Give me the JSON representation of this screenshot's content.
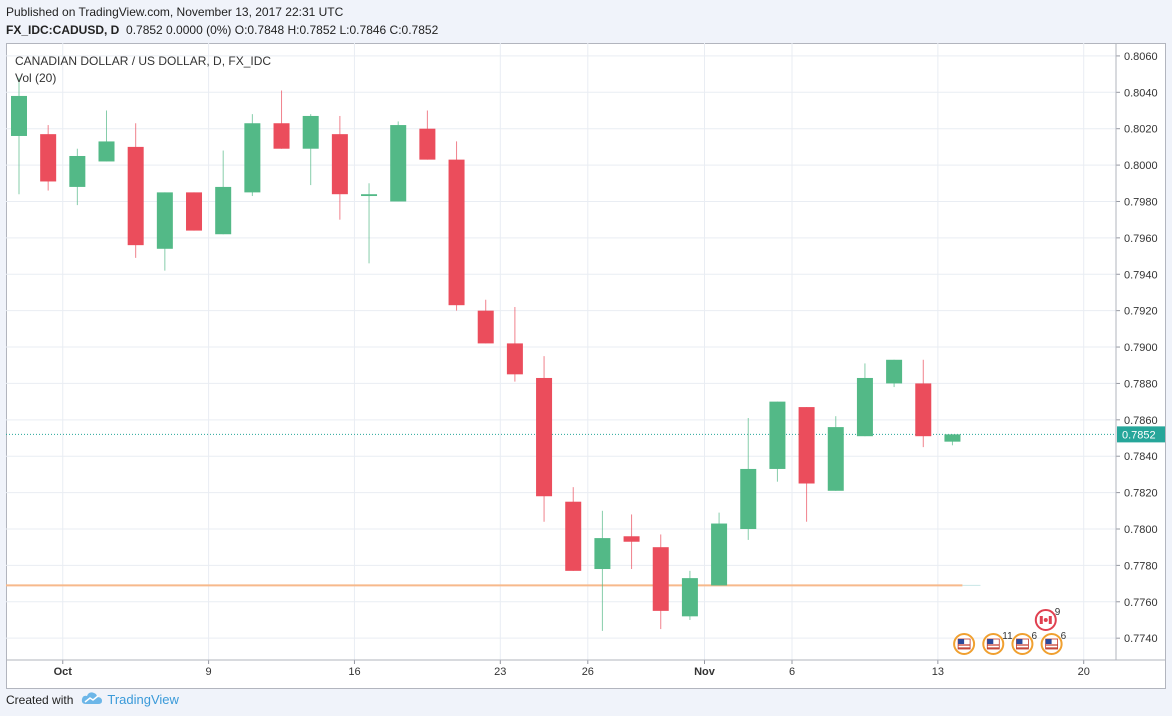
{
  "header": {
    "published": "Published on TradingView.com, November 13, 2017 22:31 UTC",
    "symbol": "FX_IDC:CADUSD, D",
    "ohlc": "0.7852 0.0000 (0%) O:0.7848 H:0.7852 L:0.7846 C:0.7852"
  },
  "legend": {
    "title": "CANADIAN DOLLAR / US DOLLAR, D, FX_IDC",
    "volume": "Vol (20)"
  },
  "footer": {
    "created_with": "Created with",
    "brand": "TradingView"
  },
  "colors": {
    "up": "#53b987",
    "down": "#eb4d5c",
    "price_line": "#26a69a",
    "ma_line": "#f7b98b",
    "grid": "#e9edf3"
  },
  "chart_data": {
    "type": "candlestick",
    "title": "CANADIAN DOLLAR / US DOLLAR, D, FX_IDC",
    "ylim": [
      0.7728,
      0.8066
    ],
    "y_ticks": [
      "0.8060",
      "0.8040",
      "0.8020",
      "0.8000",
      "0.7980",
      "0.7960",
      "0.7940",
      "0.7920",
      "0.7900",
      "0.7880",
      "0.7860",
      "0.7840",
      "0.7820",
      "0.7800",
      "0.7780",
      "0.7760",
      "0.7740"
    ],
    "x_ticks": [
      {
        "label": "Oct",
        "index": 1.5
      },
      {
        "label": "9",
        "index": 6.5
      },
      {
        "label": "16",
        "index": 11.5
      },
      {
        "label": "23",
        "index": 16.5
      },
      {
        "label": "26",
        "index": 19.5
      },
      {
        "label": "Nov",
        "index": 23.5
      },
      {
        "label": "6",
        "index": 26.5
      },
      {
        "label": "13",
        "index": 31.5
      },
      {
        "label": "20",
        "index": 36.5
      }
    ],
    "last_price": 0.7852,
    "ma_level": 0.7769,
    "candles": [
      {
        "o": 0.8016,
        "h": 0.8048,
        "l": 0.7984,
        "c": 0.8038
      },
      {
        "o": 0.8017,
        "h": 0.8022,
        "l": 0.7986,
        "c": 0.7991
      },
      {
        "o": 0.7988,
        "h": 0.8009,
        "l": 0.7978,
        "c": 0.8005
      },
      {
        "o": 0.8002,
        "h": 0.803,
        "l": 0.8002,
        "c": 0.8013
      },
      {
        "o": 0.801,
        "h": 0.8023,
        "l": 0.7949,
        "c": 0.7956
      },
      {
        "o": 0.7954,
        "h": 0.7985,
        "l": 0.7942,
        "c": 0.7985
      },
      {
        "o": 0.7985,
        "h": 0.7985,
        "l": 0.7964,
        "c": 0.7964
      },
      {
        "o": 0.7962,
        "h": 0.8008,
        "l": 0.7962,
        "c": 0.7988
      },
      {
        "o": 0.7985,
        "h": 0.8028,
        "l": 0.7983,
        "c": 0.8023
      },
      {
        "o": 0.8023,
        "h": 0.8041,
        "l": 0.8009,
        "c": 0.8009
      },
      {
        "o": 0.8009,
        "h": 0.8028,
        "l": 0.7989,
        "c": 0.8027
      },
      {
        "o": 0.8017,
        "h": 0.8027,
        "l": 0.797,
        "c": 0.7984
      },
      {
        "o": 0.7983,
        "h": 0.799,
        "l": 0.7946,
        "c": 0.7984
      },
      {
        "o": 0.798,
        "h": 0.8024,
        "l": 0.798,
        "c": 0.8022
      },
      {
        "o": 0.802,
        "h": 0.803,
        "l": 0.8003,
        "c": 0.8003
      },
      {
        "o": 0.8003,
        "h": 0.8013,
        "l": 0.792,
        "c": 0.7923
      },
      {
        "o": 0.792,
        "h": 0.7926,
        "l": 0.7902,
        "c": 0.7902
      },
      {
        "o": 0.7902,
        "h": 0.7922,
        "l": 0.7881,
        "c": 0.7885
      },
      {
        "o": 0.7883,
        "h": 0.7895,
        "l": 0.7804,
        "c": 0.7818
      },
      {
        "o": 0.7815,
        "h": 0.7823,
        "l": 0.7777,
        "c": 0.7777
      },
      {
        "o": 0.7778,
        "h": 0.781,
        "l": 0.7744,
        "c": 0.7795
      },
      {
        "o": 0.7796,
        "h": 0.7808,
        "l": 0.7778,
        "c": 0.7793
      },
      {
        "o": 0.779,
        "h": 0.7797,
        "l": 0.7745,
        "c": 0.7755
      },
      {
        "o": 0.7752,
        "h": 0.7777,
        "l": 0.775,
        "c": 0.7773
      },
      {
        "o": 0.7769,
        "h": 0.7809,
        "l": 0.7769,
        "c": 0.7803
      },
      {
        "o": 0.78,
        "h": 0.7861,
        "l": 0.7794,
        "c": 0.7833
      },
      {
        "o": 0.7833,
        "h": 0.787,
        "l": 0.7826,
        "c": 0.787
      },
      {
        "o": 0.7867,
        "h": 0.7867,
        "l": 0.7804,
        "c": 0.7825
      },
      {
        "o": 0.7821,
        "h": 0.7862,
        "l": 0.7821,
        "c": 0.7856
      },
      {
        "o": 0.7851,
        "h": 0.7891,
        "l": 0.7851,
        "c": 0.7883
      },
      {
        "o": 0.788,
        "h": 0.7893,
        "l": 0.7878,
        "c": 0.7893
      },
      {
        "o": 0.788,
        "h": 0.7893,
        "l": 0.7845,
        "c": 0.7851
      },
      {
        "o": 0.7848,
        "h": 0.7852,
        "l": 0.7846,
        "c": 0.7852
      }
    ],
    "events": [
      {
        "flag": "canada",
        "count": "9",
        "index": 35.2,
        "row": 1
      },
      {
        "flag": "us",
        "count": "",
        "index": 32.4,
        "row": 0
      },
      {
        "flag": "us",
        "count": "11",
        "index": 33.4,
        "row": 0
      },
      {
        "flag": "us",
        "count": "6",
        "index": 34.4,
        "row": 0
      },
      {
        "flag": "us",
        "count": "6",
        "index": 35.4,
        "row": 0
      }
    ]
  }
}
